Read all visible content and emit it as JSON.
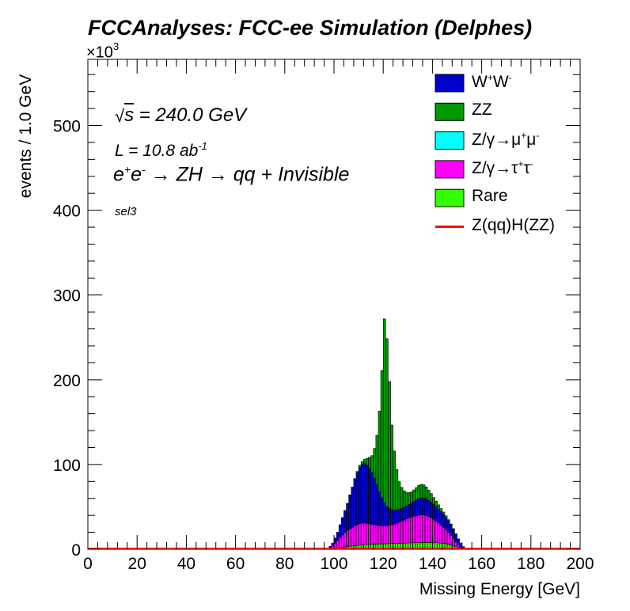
{
  "chart_data": {
    "type": "bar",
    "stacked": true,
    "title": "FCCAnalyses: FCC-ee Simulation (Delphes)",
    "xlabel": "Missing Energy [GeV]",
    "ylabel": "events / 1.0 GeV",
    "y_multiplier": "×10",
    "y_multiplier_exp": "3",
    "xlim": [
      0,
      200
    ],
    "ylim": [
      0,
      578
    ],
    "bin_width": 1.0,
    "x_ticks": [
      0,
      20,
      40,
      60,
      80,
      100,
      120,
      140,
      160,
      180,
      200
    ],
    "y_ticks": [
      0,
      100,
      200,
      300,
      400,
      500
    ],
    "grid": false,
    "legend_position": "top-right",
    "annotations": {
      "sqrt_symbol": "√",
      "sqrt_radicand": "s",
      "sqrt_rest": " = 240.0 GeV",
      "lumi_base": "L = 10.8 ab",
      "lumi_exp": "-1",
      "process": "e+e- → ZH → qq + Invisible",
      "selection": "sel3"
    },
    "legend": [
      {
        "key": "ww",
        "label": "W+W-",
        "color": "#0000cc",
        "style": "box"
      },
      {
        "key": "zz",
        "label": "ZZ",
        "color": "#009900",
        "style": "box"
      },
      {
        "key": "zmumu",
        "label": "Z/γ→μ+μ-",
        "color": "#00ffff",
        "style": "box"
      },
      {
        "key": "ztautau",
        "label": "Z/γ→τ+τ-",
        "color": "#ff00ff",
        "style": "box"
      },
      {
        "key": "rare",
        "label": "Rare",
        "color": "#33ff00",
        "style": "box"
      },
      {
        "key": "signal",
        "label": "Z(qq)H(ZZ)",
        "color": "#ff0000",
        "style": "line"
      }
    ],
    "x": [
      97,
      98,
      99,
      100,
      101,
      102,
      103,
      104,
      105,
      106,
      107,
      108,
      109,
      110,
      111,
      112,
      113,
      114,
      115,
      116,
      117,
      118,
      119,
      120,
      121,
      122,
      123,
      124,
      125,
      126,
      127,
      128,
      129,
      130,
      131,
      132,
      133,
      134,
      135,
      136,
      137,
      138,
      139,
      140,
      141,
      142,
      143,
      144,
      145,
      146,
      147,
      148,
      149,
      150,
      151,
      152,
      153,
      154
    ],
    "series": [
      {
        "name": "Rare",
        "color": "#33ff00",
        "values": [
          0.2,
          0.5,
          0.8,
          1.2,
          1.6,
          2,
          2.4,
          2.8,
          3.2,
          3.6,
          4,
          4.3,
          4.6,
          4.9,
          5.2,
          5.4,
          5.6,
          5.8,
          6,
          6.1,
          6.2,
          6.3,
          6.4,
          6.5,
          6.6,
          6.7,
          6.8,
          6.9,
          7,
          7.1,
          7.2,
          7.3,
          7.4,
          7.5,
          7.6,
          7.7,
          7.8,
          7.9,
          8,
          8.1,
          8.1,
          8.1,
          8.1,
          8,
          7.8,
          7.6,
          7.3,
          7,
          6.6,
          6,
          5.2,
          4.2,
          3,
          1.8,
          0.8,
          0.3,
          0,
          0
        ]
      },
      {
        "name": "Z/γ→τ+τ-",
        "color": "#ff00ff",
        "values": [
          0.5,
          1.5,
          3.5,
          6,
          9,
          12,
          14.5,
          17,
          19,
          20.5,
          22,
          23.5,
          24.5,
          25.5,
          25.8,
          25.6,
          25,
          24.3,
          23.5,
          22.8,
          22.2,
          21.7,
          21.4,
          21.3,
          21.4,
          21.7,
          22.3,
          23,
          23.9,
          24.9,
          26,
          27.2,
          28.4,
          29.5,
          30.5,
          31.3,
          32,
          32.4,
          32.6,
          32.4,
          31.7,
          30.6,
          29.2,
          27.5,
          25.6,
          23.5,
          21.3,
          19,
          16.5,
          14,
          11.2,
          8.3,
          5.5,
          3.3,
          1.7,
          0.7,
          0.2,
          0
        ]
      },
      {
        "name": "Z/γ→μ+μ-",
        "color": "#00ffff",
        "values": [
          0,
          0,
          0,
          0,
          0,
          0,
          0,
          0,
          0,
          0,
          0,
          0,
          0,
          0,
          0,
          0,
          0,
          0,
          0,
          0,
          0,
          0,
          0,
          0,
          0,
          0,
          0,
          0,
          0,
          0,
          0,
          0,
          0,
          0,
          0,
          0,
          0,
          0,
          0,
          0,
          0,
          0,
          0,
          0,
          0,
          0,
          0,
          0,
          0,
          0,
          0,
          0,
          0,
          0,
          0,
          0,
          0,
          0
        ]
      },
      {
        "name": "W+W-",
        "color": "#0000cc",
        "values": [
          0.5,
          1.5,
          3,
          6,
          9.5,
          15,
          20.5,
          26,
          32,
          40,
          47,
          55,
          61.5,
          66.5,
          69,
          70,
          68.5,
          65.5,
          61,
          55,
          48,
          40,
          33,
          27,
          22.5,
          19.5,
          17.5,
          16,
          15.2,
          14.8,
          14.8,
          15,
          15.3,
          15.8,
          16.5,
          17.5,
          18.5,
          19.5,
          20,
          20,
          19.6,
          19,
          18.3,
          17.6,
          16.9,
          16.3,
          15.7,
          15.1,
          14.5,
          13.7,
          12.7,
          11.4,
          9.5,
          7,
          4.5,
          2.2,
          0.7,
          0
        ]
      },
      {
        "name": "ZZ",
        "color": "#009900",
        "values": [
          0,
          0,
          0,
          0,
          0,
          0,
          0,
          0,
          0,
          0.1,
          0.3,
          0.6,
          1.2,
          2.2,
          3.5,
          5,
          8,
          13,
          20,
          35,
          58,
          95,
          150,
          217,
          198,
          150,
          100,
          70,
          48,
          33,
          25,
          19.5,
          16,
          14,
          13.1,
          13.5,
          14.5,
          15.5,
          16,
          15.5,
          14,
          12,
          10,
          8,
          6.5,
          5,
          3.8,
          2.8,
          1.9,
          1.2,
          0.7,
          0.4,
          0.2,
          0.1,
          0,
          0,
          0,
          0
        ]
      },
      {
        "name": "Z(qq)H(ZZ)",
        "color": "#ff0000",
        "style": "line",
        "values": [
          0,
          0,
          0,
          0,
          0,
          0,
          0,
          0,
          0,
          0,
          0,
          0,
          0,
          0,
          0,
          0,
          0,
          0,
          0,
          0,
          0,
          0,
          0,
          0,
          0,
          0,
          0,
          0,
          0,
          0,
          0,
          0,
          0,
          0,
          0,
          0,
          0,
          0,
          0,
          0,
          0,
          0,
          0,
          0,
          0,
          0,
          0,
          0,
          0,
          0,
          0,
          0,
          0,
          0,
          0,
          0,
          0,
          0
        ]
      }
    ]
  }
}
